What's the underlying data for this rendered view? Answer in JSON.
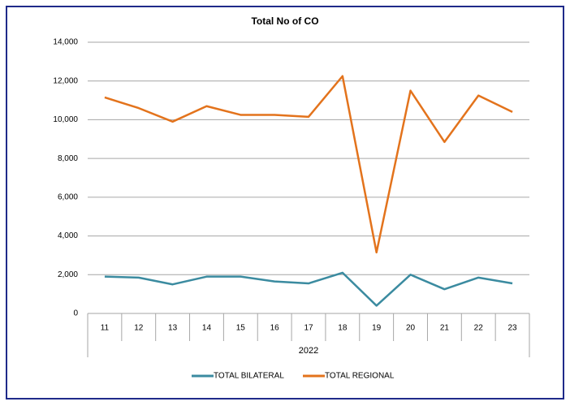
{
  "chart_data": {
    "type": "line",
    "title": "Total No of CO",
    "categories": [
      "11",
      "12",
      "13",
      "14",
      "15",
      "16",
      "17",
      "18",
      "19",
      "20",
      "21",
      "22",
      "23"
    ],
    "category_group": "2022",
    "series": [
      {
        "name": "TOTAL BILATERAL",
        "color": "#3b8ba0",
        "values": [
          1900,
          1850,
          1500,
          1900,
          1900,
          1650,
          1550,
          2100,
          400,
          2000,
          1250,
          1850,
          1550
        ]
      },
      {
        "name": "TOTAL REGIONAL",
        "color": "#e3731c",
        "values": [
          11150,
          10600,
          9900,
          10700,
          10250,
          10250,
          10150,
          12250,
          3150,
          11500,
          8850,
          11250,
          10400
        ]
      }
    ],
    "ylim": [
      0,
      14000
    ],
    "yticks": [
      0,
      {
        "value": 2000,
        "label": "2,000"
      },
      {
        "value": 4000,
        "label": "4,000"
      },
      {
        "value": 6000,
        "label": "6,000"
      },
      {
        "value": 8000,
        "label": "8,000"
      },
      {
        "value": 10000,
        "label": "10,000"
      },
      {
        "value": 12000,
        "label": "12,000"
      },
      {
        "value": 14000,
        "label": "14,000"
      }
    ],
    "grid": true,
    "legend": "bottom"
  }
}
